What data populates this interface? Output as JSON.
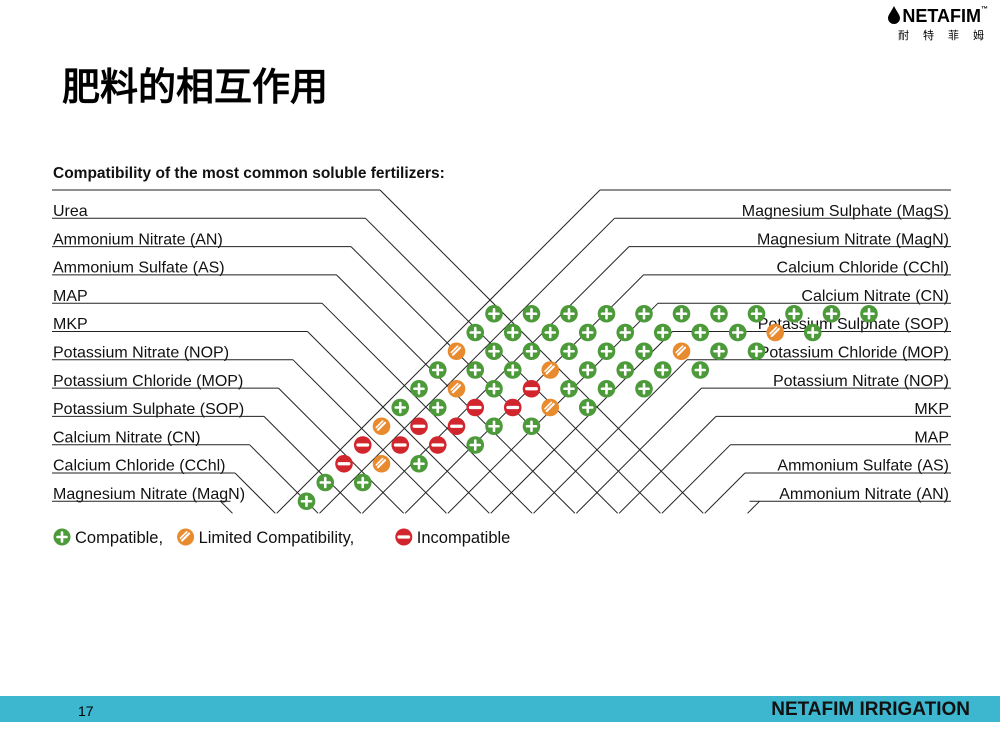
{
  "logo": {
    "name": "NETAFIM",
    "tm": "™",
    "chinese": "耐特菲姆"
  },
  "slide": {
    "title": "肥料的相互作用",
    "page_number": "17",
    "footer_brand": "NETAFIM IRRIGATION"
  },
  "chart_data": {
    "type": "table",
    "title": "Compatibility of the most common soluble fertilizers:",
    "fertilizers": [
      "Urea",
      "Ammonium Nitrate (AN)",
      "Ammonium Sulfate (AS)",
      "MAP",
      "MKP",
      "Potassium Nitrate (NOP)",
      "Potassium Chloride (MOP)",
      "Potassium Sulphate (SOP)",
      "Calcium Nitrate (CN)",
      "Calcium Chloride (CChl)",
      "Magnesium Nitrate (MagN)",
      "Magnesium Sulphate (MagS)"
    ],
    "left_labels": [
      "Urea",
      "Ammonium Nitrate (AN)",
      "Ammonium Sulfate (AS)",
      "MAP",
      "MKP",
      "Potassium Nitrate (NOP)",
      "Potassium Chloride (MOP)",
      "Potassium Sulphate (SOP)",
      "Calcium Nitrate (CN)",
      "Calcium Chloride (CChl)",
      "Magnesium Nitrate (MagN)"
    ],
    "right_labels": [
      "Magnesium Sulphate (MagS)",
      "Magnesium Nitrate (MagN)",
      "Calcium Chloride (CChl)",
      "Calcium Nitrate (CN)",
      "Potassium Sulphate (SOP)",
      "Potassium Chloride (MOP)",
      "Potassium Nitrate (NOP)",
      "MKP",
      "MAP",
      "Ammonium Sulfate (AS)",
      "Ammonium Nitrate (AN)"
    ],
    "matrix_rows_note": "row k lists pairs (fertilizers[i], fertilizers[i+k]) for i = 0..11-k",
    "rows": [
      [
        "C",
        "C",
        "C",
        "C",
        "C",
        "C",
        "C",
        "C",
        "C",
        "C",
        "C"
      ],
      [
        "C",
        "C",
        "C",
        "C",
        "C",
        "C",
        "C",
        "C",
        "L",
        "C"
      ],
      [
        "L",
        "C",
        "C",
        "C",
        "C",
        "C",
        "L",
        "C",
        "C"
      ],
      [
        "C",
        "C",
        "C",
        "L",
        "C",
        "C",
        "C",
        "C"
      ],
      [
        "C",
        "L",
        "C",
        "I",
        "C",
        "C",
        "C"
      ],
      [
        "C",
        "C",
        "I",
        "I",
        "L",
        "C"
      ],
      [
        "L",
        "I",
        "I",
        "C",
        "C"
      ],
      [
        "I",
        "I",
        "I",
        "C"
      ],
      [
        "I",
        "L",
        "C"
      ],
      [
        "C",
        "C"
      ],
      [
        "C"
      ]
    ],
    "legend": [
      {
        "key": "C",
        "label": "Compatible,",
        "color": "#4d9a3a"
      },
      {
        "key": "L",
        "label": "Limited Compatibility,",
        "color": "#e88a2e"
      },
      {
        "key": "I",
        "label": "Incompatible",
        "color": "#d2262e"
      }
    ]
  }
}
